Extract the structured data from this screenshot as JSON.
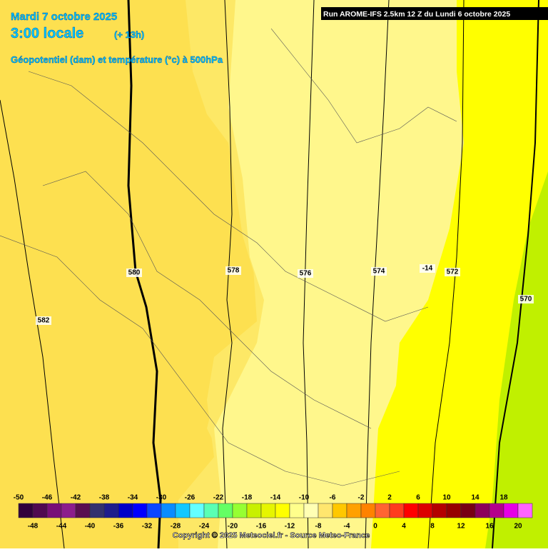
{
  "header": {
    "date": "Mardi 7 octobre 2025",
    "time": "3:00 locale",
    "lead": "(+ 13h)",
    "field": "Géopotentiel (dam) et température (°c) à 500hPa",
    "run": "Run AROME-IFS 2.5km 12 Z du Lundi 6 octobre 2025"
  },
  "contour_labels": [
    580,
    578,
    576,
    574,
    -14,
    572,
    570,
    582
  ],
  "legend": {
    "labels": [
      -50,
      -48,
      -46,
      -44,
      -42,
      -40,
      -38,
      -36,
      -34,
      -32,
      -30,
      -28,
      -26,
      -24,
      -22,
      -20,
      -18,
      -16,
      -14,
      -12,
      -10,
      -8,
      -6,
      -4,
      -2,
      0,
      2,
      4,
      6,
      8,
      10,
      12,
      14,
      16,
      18,
      20
    ],
    "colors": [
      "#32003c",
      "#500a50",
      "#780f78",
      "#8c1e8c",
      "#5a0f50",
      "#32326e",
      "#1e1e8c",
      "#0000c8",
      "#0000ff",
      "#0a46ff",
      "#0a8cff",
      "#14c8ff",
      "#64ffff",
      "#5affb4",
      "#64ff64",
      "#96ff32",
      "#c8f000",
      "#e6f500",
      "#ffff00",
      "#ffff8c",
      "#ffffb4",
      "#ffe66e",
      "#ffc800",
      "#ffa000",
      "#ff8200",
      "#ff6432",
      "#ff3c1e",
      "#ff0000",
      "#dc0000",
      "#b40000",
      "#960000",
      "#780014",
      "#8c005a",
      "#b4008c",
      "#e600e6",
      "#ff64ff"
    ]
  },
  "footer": {
    "copyright": "Copyright © 2025 Meteociel.fr - Source Meteo-France"
  }
}
